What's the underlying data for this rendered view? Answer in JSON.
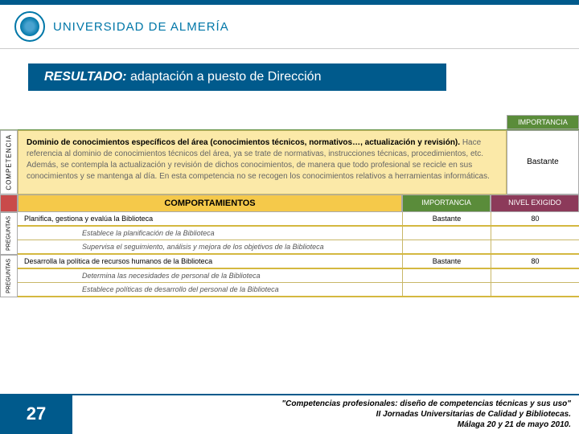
{
  "colors": {
    "brand_blue": "#005a8c",
    "logo_blue": "#0077a8",
    "green": "#5a8c3a",
    "yellow_bg": "#fbe9a8",
    "orange": "#f5c94a",
    "maroon": "#8c3a5a",
    "red": "#c94a4a"
  },
  "header": {
    "university": "UNIVERSIDAD DE ALMERÍA"
  },
  "title": {
    "prefix": "RESULTADO:",
    "text": "adaptación a puesto de Dirección"
  },
  "table": {
    "importancia_header": "IMPORTANCIA",
    "competencia_vlabel": "COMPETENCIA",
    "competencia_bold": "Dominio de conocimientos específicos del área (conocimientos técnicos, normativos…, actualización y revisión).",
    "competencia_rest": " Hace referencia al dominio de conocimientos técnicos del área, ya se trate de normativas, instrucciones técnicas, procedimientos, etc. Además, se contempla la actualización y revisión de dichos conocimientos, de manera que todo profesional se recicle en sus conocimientos y se mantenga al día. En esta competencia no se recogen los conocimientos relativos a herramientas informáticas.",
    "importancia_value": "Bastante",
    "comportamientos_header": "COMPORTAMIENTOS",
    "importancia2_header": "IMPORTANCIA",
    "nivel_header": "NIVEL EXIGIDO",
    "preguntas_vlabel": "PREGUNTAS",
    "preguntas2_vlabel": "PREGUNTAS",
    "behaviors": [
      {
        "text": "Planifica, gestiona y evalúa la Biblioteca",
        "imp": "Bastante",
        "niv": "80"
      },
      {
        "sub": "Establece la planificación de la Biblioteca"
      },
      {
        "sub": "Supervisa el seguimiento, análisis y mejora de los objetivos de la Biblioteca"
      },
      {
        "text": "Desarrolla la política de recursos humanos de la Biblioteca",
        "imp": "Bastante",
        "niv": "80"
      },
      {
        "sub": "Determina las necesidades de personal de la Biblioteca"
      },
      {
        "sub": "Establece políticas de desarrollo del personal de la Biblioteca"
      }
    ]
  },
  "footer": {
    "page": "27",
    "line1": "\"Competencias profesionales: diseño de competencias técnicas y sus uso\"",
    "line2": "II Jornadas Universitarias de Calidad y Bibliotecas.",
    "line3": "Málaga 20 y 21 de mayo 2010."
  }
}
